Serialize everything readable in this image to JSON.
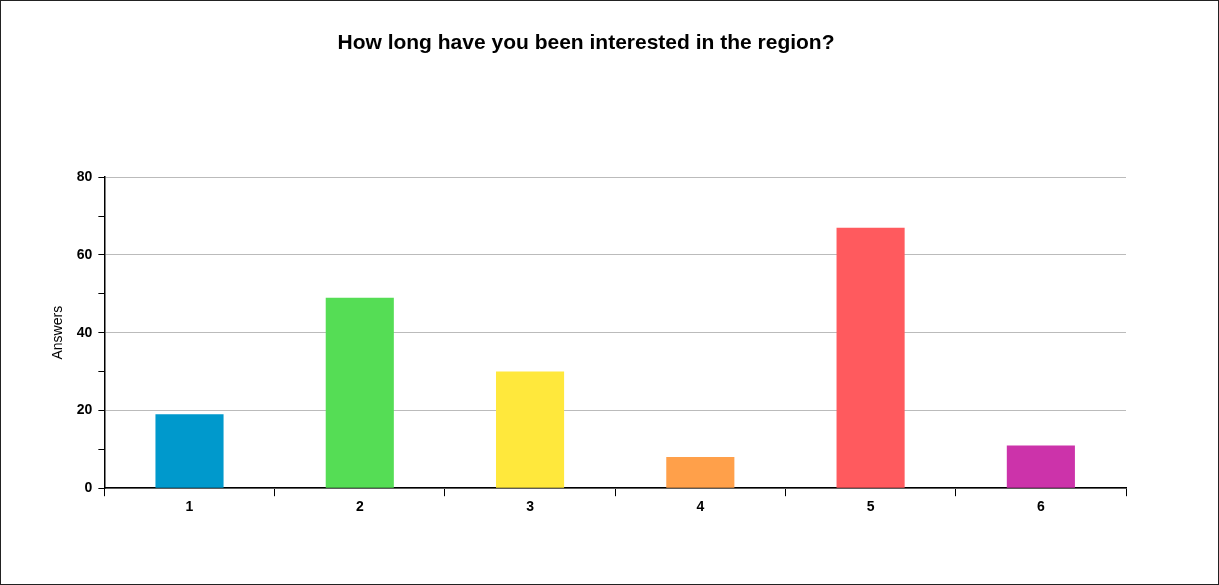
{
  "chart_data": {
    "type": "bar",
    "title": "How long have you been interested in the region?",
    "ylabel": "Answers",
    "categories": [
      "1",
      "2",
      "3",
      "4",
      "5",
      "6"
    ],
    "values": [
      19,
      49,
      30,
      8,
      67,
      11
    ],
    "colors": [
      "#0099cc",
      "#55dd55",
      "#ffe83c",
      "#ffa04a",
      "#ff5a5e",
      "#cc33aa"
    ],
    "ylim": [
      0,
      80
    ],
    "yticks": [
      0,
      {
        "value": 10,
        "label": null
      },
      20,
      {
        "value": 30,
        "label": null
      },
      40,
      {
        "value": 50,
        "label": null
      },
      60,
      {
        "value": 70,
        "label": null
      },
      80
    ],
    "grid": "y",
    "legend": false
  }
}
